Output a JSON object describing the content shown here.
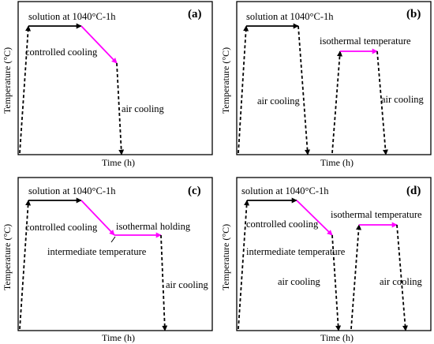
{
  "colors": {
    "black": "#000000",
    "accent": "#ff00ff"
  },
  "panels": [
    {
      "label": "(a)",
      "xlabel": "Time (h)",
      "ylabel": "Temperature (°C)",
      "texts": [
        "solution at 1040°C-1h",
        "controlled cooling",
        "air cooling"
      ]
    },
    {
      "label": "(b)",
      "xlabel": "Time (h)",
      "ylabel": "Temperature (°C)",
      "texts": [
        "solution at 1040°C-1h",
        "air cooling",
        "isothermal temperature",
        "air cooling"
      ]
    },
    {
      "label": "(c)",
      "xlabel": "Time (h)",
      "ylabel": "Temperature (°C)",
      "texts": [
        "solution at 1040°C-1h",
        "controlled cooling",
        "isothermal holding",
        "intermediate temperature",
        "air cooling"
      ]
    },
    {
      "label": "(d)",
      "xlabel": "Time (h)",
      "ylabel": "Temperature (°C)",
      "texts": [
        "solution at 1040°C-1h",
        "controlled cooling",
        "intermediate temperature",
        "isothermal temperature",
        "air cooling",
        "air cooling"
      ]
    }
  ]
}
